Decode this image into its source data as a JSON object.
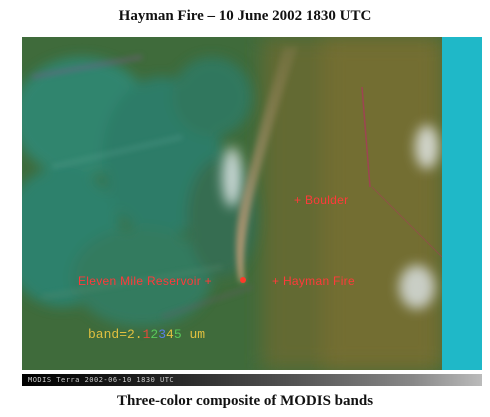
{
  "title": "Hayman Fire – 10 June 2002 1830 UTC",
  "caption": "Three-color composite of MODIS bands",
  "annotations": {
    "boulder": "+ Boulder",
    "hayman": "+ Hayman Fire",
    "eleven_mile": "Eleven Mile Reservoir +"
  },
  "band_label": {
    "prefix": "band=2.",
    "values": [
      "1",
      "2",
      "3",
      "4",
      "5"
    ],
    "suffix": "um"
  },
  "scale_text": "MODIS Terra 2002-06-10 1830 UTC",
  "colors": {
    "annotation": "#ff3a3a",
    "vegetation": "#3e6a3a",
    "cloud_right_strip": "#1fb8c8",
    "smoke": "#b89878"
  },
  "icons": {
    "boulder_marker": "plus-marker",
    "fire_marker": "plus-marker"
  }
}
